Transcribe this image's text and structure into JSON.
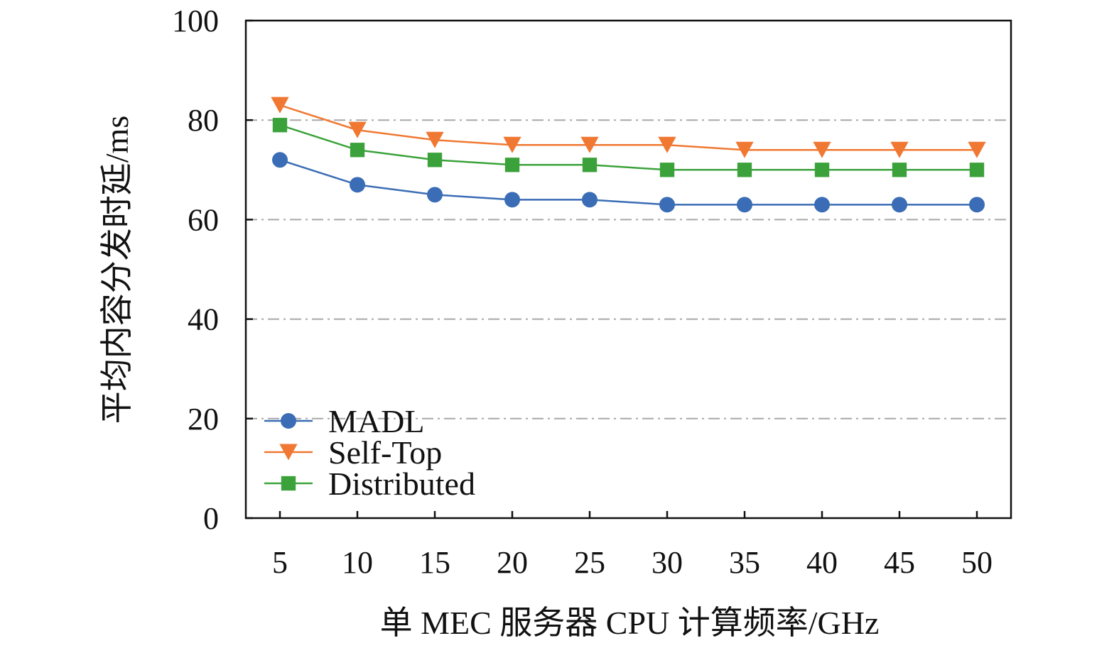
{
  "chart_data": {
    "type": "line",
    "title": "",
    "xlabel": "单 MEC 服务器 CPU 计算频率/GHz",
    "ylabel": "平均内容分发时延/ms",
    "x": [
      5,
      10,
      15,
      20,
      25,
      30,
      35,
      40,
      45,
      50
    ],
    "x_tick_labels": [
      "5",
      "10",
      "15",
      "20",
      "25",
      "30",
      "35",
      "40",
      "45",
      "50"
    ],
    "y_ticks": [
      0,
      20,
      40,
      60,
      80,
      100
    ],
    "y_tick_labels": [
      "0",
      "20",
      "40",
      "60",
      "80",
      "100"
    ],
    "ylim": [
      0,
      100
    ],
    "grid": "horizontal dash-dot",
    "legend_position": "bottom-left",
    "series": [
      {
        "name": "MADL",
        "marker": "circle",
        "color": "#3A6DB5",
        "values": [
          72,
          67,
          65,
          64,
          64,
          63,
          63,
          63,
          63,
          63
        ]
      },
      {
        "name": "Self-Top",
        "marker": "triangle-down",
        "color": "#F07832",
        "values": [
          83,
          78,
          76,
          75,
          75,
          75,
          74,
          74,
          74,
          74
        ]
      },
      {
        "name": "Distributed",
        "marker": "square",
        "color": "#3BA23B",
        "values": [
          79,
          74,
          72,
          71,
          71,
          70,
          70,
          70,
          70,
          70
        ]
      }
    ]
  }
}
